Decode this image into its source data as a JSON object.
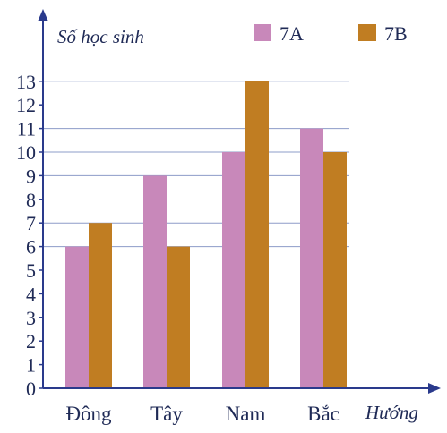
{
  "chart_data": {
    "type": "bar",
    "categories": [
      "Đông",
      "Tây",
      "Nam",
      "Bắc"
    ],
    "series": [
      {
        "name": "7A",
        "values": [
          6,
          9,
          10,
          11
        ],
        "color": "#c888ba"
      },
      {
        "name": "7B",
        "values": [
          7,
          6,
          13,
          10
        ],
        "color": "#c07d22"
      }
    ],
    "ylabel": "Số học sinh",
    "xlabel": "Hướng",
    "ylim": [
      0,
      13
    ],
    "yticks": [
      0,
      1,
      2,
      3,
      4,
      5,
      6,
      7,
      8,
      9,
      10,
      11,
      12,
      13
    ],
    "legend_position": "top-right",
    "grid": "horizontal lines at bar tops",
    "axis_color": "#2a3a8c"
  }
}
